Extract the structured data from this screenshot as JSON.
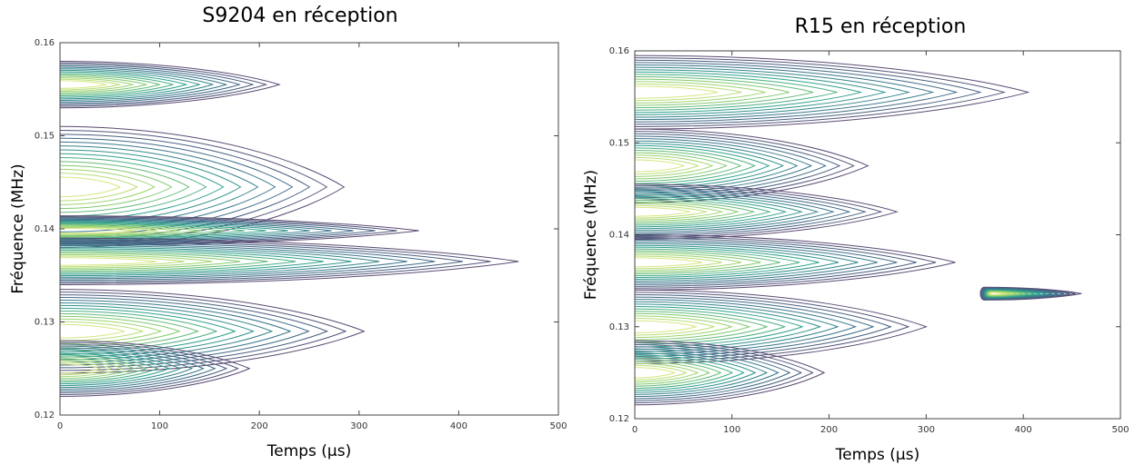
{
  "chart_data": [
    {
      "type": "contour",
      "title": "S9204 en réception",
      "x_label": "Temps (µs)",
      "y_label": "Fréquence (MHz)",
      "xlim": [
        0,
        500
      ],
      "ylim": [
        0.12,
        0.16
      ],
      "xticks": [
        0,
        100,
        200,
        300,
        400,
        500
      ],
      "yticks": [
        0.12,
        0.13,
        0.14,
        0.15,
        0.16
      ],
      "levels": 14,
      "colors": [
        "#5b4a73",
        "#3b6f8c",
        "#2ea08c",
        "#8fd06a",
        "#f4ef8a"
      ],
      "lobes": [
        {
          "y": 0.1555,
          "dy": 0.0025,
          "x0": 0,
          "x1": 220
        },
        {
          "y": 0.1445,
          "dy": 0.0065,
          "x0": 0,
          "x1": 285
        },
        {
          "y": 0.1398,
          "dy": 0.0016,
          "x0": 0,
          "x1": 360
        },
        {
          "y": 0.1365,
          "dy": 0.0025,
          "x0": 0,
          "x1": 460
        },
        {
          "y": 0.129,
          "dy": 0.0045,
          "x0": 0,
          "x1": 305
        },
        {
          "y": 0.125,
          "dy": 0.003,
          "x0": 0,
          "x1": 190
        }
      ]
    },
    {
      "type": "contour",
      "title": "R15 en réception",
      "x_label": "Temps (µs)",
      "y_label": "Fréquence (MHz)",
      "xlim": [
        0,
        500
      ],
      "ylim": [
        0.12,
        0.16
      ],
      "xticks": [
        0,
        100,
        200,
        300,
        400,
        500
      ],
      "yticks": [
        0.12,
        0.13,
        0.14,
        0.15,
        0.16
      ],
      "levels": 14,
      "colors": [
        "#5b4a73",
        "#3b6f8c",
        "#2ea08c",
        "#8fd06a",
        "#f4ef8a"
      ],
      "lobes": [
        {
          "y": 0.1555,
          "dy": 0.004,
          "x0": 0,
          "x1": 405
        },
        {
          "y": 0.1475,
          "dy": 0.004,
          "x0": 0,
          "x1": 240
        },
        {
          "y": 0.1425,
          "dy": 0.003,
          "x0": 0,
          "x1": 270
        },
        {
          "y": 0.137,
          "dy": 0.003,
          "x0": 0,
          "x1": 330
        },
        {
          "y": 0.13,
          "dy": 0.004,
          "x0": 0,
          "x1": 300
        },
        {
          "y": 0.125,
          "dy": 0.0035,
          "x0": 0,
          "x1": 195
        },
        {
          "y": 0.1336,
          "dy": 0.0007,
          "x0": 360,
          "x1": 460
        }
      ]
    }
  ]
}
